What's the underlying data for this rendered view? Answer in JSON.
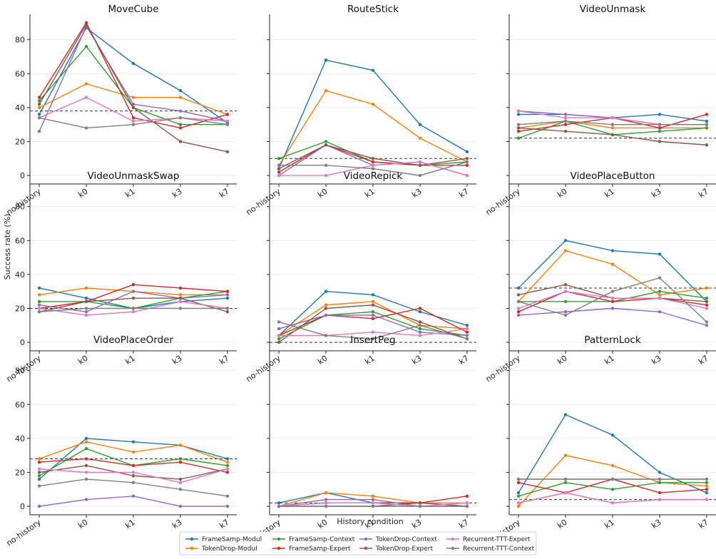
{
  "figure": {
    "ylabel": "Success rate (%)",
    "xlabel": "History condition"
  },
  "colors": {
    "FrameSamp-Modul": "#1f77b4",
    "TokenDrop-Modul": "#ff7f0e",
    "FrameSamp-Context": "#2ca02c",
    "FrameSamp-Expert": "#d62728",
    "TokenDrop-Context": "#9467bd",
    "TokenDrop-Expert": "#8c564b",
    "Recurrent-TTT-Expert": "#e377c2",
    "Recurrent-TTT-Context": "#7f7f7f"
  },
  "legend": {
    "placement": "bottom-center",
    "entries": [
      "FrameSamp-Modul",
      "TokenDrop-Modul",
      "FrameSamp-Context",
      "FrameSamp-Expert",
      "TokenDrop-Context",
      "TokenDrop-Expert",
      "Recurrent-TTT-Expert",
      "Recurrent-TTT-Context"
    ]
  },
  "chart_data": [
    {
      "type": "line",
      "title": "MoveCube",
      "categories": [
        "no-history",
        "k0",
        "k1",
        "k3",
        "k7"
      ],
      "ylim": [
        -5,
        95
      ],
      "yticks": [
        0,
        20,
        40,
        60,
        80
      ],
      "baseline": 38,
      "series": [
        {
          "name": "FrameSamp-Modul",
          "values": [
            36,
            87,
            66,
            50,
            31
          ]
        },
        {
          "name": "TokenDrop-Modul",
          "values": [
            40,
            54,
            46,
            46,
            36
          ]
        },
        {
          "name": "FrameSamp-Context",
          "values": [
            44,
            76,
            40,
            30,
            30
          ]
        },
        {
          "name": "FrameSamp-Expert",
          "values": [
            46,
            90,
            34,
            28,
            36
          ]
        },
        {
          "name": "TokenDrop-Context",
          "values": [
            26,
            88,
            42,
            38,
            32
          ]
        },
        {
          "name": "TokenDrop-Expert",
          "values": [
            42,
            89,
            40,
            20,
            14
          ]
        },
        {
          "name": "Recurrent-TTT-Expert",
          "values": [
            34,
            46,
            32,
            34,
            32
          ]
        },
        {
          "name": "Recurrent-TTT-Context",
          "values": [
            34,
            28,
            30,
            34,
            30
          ]
        }
      ]
    },
    {
      "type": "line",
      "title": "RouteStick",
      "categories": [
        "no-history",
        "k0",
        "k1",
        "k3",
        "k7"
      ],
      "ylim": [
        -5,
        95
      ],
      "yticks": [
        0,
        20,
        40,
        60,
        80
      ],
      "baseline": 10,
      "series": [
        {
          "name": "FrameSamp-Modul",
          "values": [
            4,
            68,
            62,
            30,
            14
          ]
        },
        {
          "name": "TokenDrop-Modul",
          "values": [
            6,
            50,
            42,
            22,
            8
          ]
        },
        {
          "name": "FrameSamp-Context",
          "values": [
            10,
            20,
            8,
            6,
            8
          ]
        },
        {
          "name": "FrameSamp-Expert",
          "values": [
            2,
            18,
            8,
            6,
            6
          ]
        },
        {
          "name": "TokenDrop-Context",
          "values": [
            0,
            18,
            6,
            8,
            0
          ]
        },
        {
          "name": "TokenDrop-Expert",
          "values": [
            4,
            18,
            10,
            6,
            10
          ]
        },
        {
          "name": "Recurrent-TTT-Expert",
          "values": [
            0,
            0,
            6,
            8,
            0
          ]
        },
        {
          "name": "Recurrent-TTT-Context",
          "values": [
            6,
            6,
            4,
            0,
            8
          ]
        }
      ]
    },
    {
      "type": "line",
      "title": "VideoUnmask",
      "categories": [
        "no-history",
        "k0",
        "k1",
        "k3",
        "k7"
      ],
      "ylim": [
        -5,
        95
      ],
      "yticks": [
        0,
        20,
        40,
        60,
        80
      ],
      "baseline": 22,
      "series": [
        {
          "name": "FrameSamp-Modul",
          "values": [
            36,
            36,
            34,
            36,
            32
          ]
        },
        {
          "name": "TokenDrop-Modul",
          "values": [
            28,
            32,
            28,
            28,
            28
          ]
        },
        {
          "name": "FrameSamp-Context",
          "values": [
            22,
            32,
            24,
            26,
            28
          ]
        },
        {
          "name": "FrameSamp-Expert",
          "values": [
            26,
            30,
            34,
            28,
            36
          ]
        },
        {
          "name": "TokenDrop-Context",
          "values": [
            38,
            36,
            34,
            30,
            30
          ]
        },
        {
          "name": "TokenDrop-Expert",
          "values": [
            28,
            26,
            24,
            20,
            18
          ]
        },
        {
          "name": "Recurrent-TTT-Expert",
          "values": [
            38,
            34,
            34,
            30,
            30
          ]
        },
        {
          "name": "Recurrent-TTT-Context",
          "values": [
            30,
            32,
            30,
            30,
            30
          ]
        }
      ]
    },
    {
      "type": "line",
      "title": "VideoUnmaskSwap",
      "categories": [
        "no-history",
        "k0",
        "k1",
        "k3",
        "k7"
      ],
      "ylim": [
        -5,
        95
      ],
      "yticks": [
        0,
        20,
        40,
        60,
        80
      ],
      "baseline": 20,
      "series": [
        {
          "name": "FrameSamp-Modul",
          "values": [
            32,
            26,
            20,
            24,
            26
          ]
        },
        {
          "name": "TokenDrop-Modul",
          "values": [
            28,
            32,
            30,
            28,
            28
          ]
        },
        {
          "name": "FrameSamp-Context",
          "values": [
            24,
            24,
            20,
            26,
            30
          ]
        },
        {
          "name": "FrameSamp-Expert",
          "values": [
            20,
            24,
            34,
            32,
            30
          ]
        },
        {
          "name": "TokenDrop-Context",
          "values": [
            22,
            18,
            30,
            26,
            28
          ]
        },
        {
          "name": "TokenDrop-Expert",
          "values": [
            18,
            24,
            26,
            26,
            18
          ]
        },
        {
          "name": "Recurrent-TTT-Expert",
          "values": [
            20,
            16,
            18,
            24,
            20
          ]
        },
        {
          "name": "Recurrent-TTT-Context",
          "values": [
            18,
            20,
            20,
            20,
            20
          ]
        }
      ]
    },
    {
      "type": "line",
      "title": "VideoRepick",
      "categories": [
        "no-history",
        "k0",
        "k1",
        "k3",
        "k7"
      ],
      "ylim": [
        -5,
        95
      ],
      "yticks": [
        0,
        20,
        40,
        60,
        80
      ],
      "baseline": 0,
      "series": [
        {
          "name": "FrameSamp-Modul",
          "values": [
            4,
            30,
            28,
            18,
            10
          ]
        },
        {
          "name": "TokenDrop-Modul",
          "values": [
            4,
            22,
            24,
            10,
            8
          ]
        },
        {
          "name": "FrameSamp-Context",
          "values": [
            2,
            16,
            18,
            8,
            4
          ]
        },
        {
          "name": "FrameSamp-Expert",
          "values": [
            4,
            16,
            14,
            20,
            6
          ]
        },
        {
          "name": "TokenDrop-Context",
          "values": [
            8,
            16,
            16,
            6,
            4
          ]
        },
        {
          "name": "TokenDrop-Expert",
          "values": [
            0,
            20,
            22,
            12,
            2
          ]
        },
        {
          "name": "Recurrent-TTT-Expert",
          "values": [
            4,
            4,
            6,
            4,
            8
          ]
        },
        {
          "name": "Recurrent-TTT-Context",
          "values": [
            12,
            4,
            2,
            10,
            2
          ]
        }
      ]
    },
    {
      "type": "line",
      "title": "VideoPlaceButton",
      "categories": [
        "no-history",
        "k0",
        "k1",
        "k3",
        "k7"
      ],
      "ylim": [
        -5,
        95
      ],
      "yticks": [
        0,
        20,
        40,
        60,
        80
      ],
      "baseline": 32,
      "series": [
        {
          "name": "FrameSamp-Modul",
          "values": [
            32,
            60,
            54,
            52,
            24
          ]
        },
        {
          "name": "TokenDrop-Modul",
          "values": [
            24,
            54,
            46,
            28,
            32
          ]
        },
        {
          "name": "FrameSamp-Context",
          "values": [
            24,
            24,
            24,
            30,
            26
          ]
        },
        {
          "name": "FrameSamp-Expert",
          "values": [
            18,
            30,
            24,
            26,
            22
          ]
        },
        {
          "name": "TokenDrop-Context",
          "values": [
            16,
            18,
            20,
            18,
            10
          ]
        },
        {
          "name": "TokenDrop-Expert",
          "values": [
            28,
            34,
            26,
            26,
            24
          ]
        },
        {
          "name": "Recurrent-TTT-Expert",
          "values": [
            20,
            30,
            26,
            26,
            20
          ]
        },
        {
          "name": "Recurrent-TTT-Context",
          "values": [
            24,
            16,
            30,
            38,
            12
          ]
        }
      ]
    },
    {
      "type": "line",
      "title": "VideoPlaceOrder",
      "categories": [
        "no-history",
        "k0",
        "k1",
        "k3",
        "k7"
      ],
      "ylim": [
        -5,
        95
      ],
      "yticks": [
        0,
        20,
        40,
        60,
        80
      ],
      "baseline": 28,
      "series": [
        {
          "name": "FrameSamp-Modul",
          "values": [
            16,
            40,
            38,
            36,
            28
          ]
        },
        {
          "name": "TokenDrop-Modul",
          "values": [
            28,
            38,
            32,
            36,
            26
          ]
        },
        {
          "name": "FrameSamp-Context",
          "values": [
            18,
            34,
            24,
            28,
            24
          ]
        },
        {
          "name": "FrameSamp-Expert",
          "values": [
            26,
            28,
            24,
            26,
            20
          ]
        },
        {
          "name": "TokenDrop-Context",
          "values": [
            0,
            4,
            6,
            0,
            0
          ]
        },
        {
          "name": "TokenDrop-Expert",
          "values": [
            20,
            24,
            18,
            16,
            22
          ]
        },
        {
          "name": "Recurrent-TTT-Expert",
          "values": [
            22,
            20,
            20,
            14,
            22
          ]
        },
        {
          "name": "Recurrent-TTT-Context",
          "values": [
            12,
            16,
            14,
            10,
            6
          ]
        }
      ]
    },
    {
      "type": "line",
      "title": "InsertPeg",
      "categories": [
        "no-history",
        "k0",
        "k1",
        "k3",
        "k7"
      ],
      "ylim": [
        -5,
        95
      ],
      "yticks": [
        0,
        20,
        40,
        60,
        80
      ],
      "baseline": 2,
      "series": [
        {
          "name": "FrameSamp-Modul",
          "values": [
            2,
            8,
            2,
            2,
            0
          ]
        },
        {
          "name": "TokenDrop-Modul",
          "values": [
            0,
            8,
            6,
            2,
            2
          ]
        },
        {
          "name": "FrameSamp-Context",
          "values": [
            0,
            0,
            0,
            0,
            0
          ]
        },
        {
          "name": "FrameSamp-Expert",
          "values": [
            0,
            2,
            2,
            2,
            6
          ]
        },
        {
          "name": "TokenDrop-Context",
          "values": [
            0,
            4,
            4,
            0,
            0
          ]
        },
        {
          "name": "TokenDrop-Expert",
          "values": [
            0,
            0,
            0,
            2,
            0
          ]
        },
        {
          "name": "Recurrent-TTT-Expert",
          "values": [
            0,
            2,
            2,
            0,
            2
          ]
        },
        {
          "name": "Recurrent-TTT-Context",
          "values": [
            0,
            0,
            0,
            0,
            0
          ]
        }
      ]
    },
    {
      "type": "line",
      "title": "PatternLock",
      "categories": [
        "no-history",
        "k0",
        "k1",
        "k3",
        "k7"
      ],
      "ylim": [
        -5,
        95
      ],
      "yticks": [
        0,
        20,
        40,
        60,
        80
      ],
      "baseline": 4,
      "series": [
        {
          "name": "FrameSamp-Modul",
          "values": [
            8,
            54,
            42,
            20,
            8
          ]
        },
        {
          "name": "TokenDrop-Modul",
          "values": [
            0,
            30,
            24,
            14,
            12
          ]
        },
        {
          "name": "FrameSamp-Context",
          "values": [
            6,
            14,
            10,
            14,
            14
          ]
        },
        {
          "name": "FrameSamp-Expert",
          "values": [
            14,
            8,
            16,
            8,
            10
          ]
        },
        {
          "name": "TokenDrop-Context",
          "values": [
            2,
            8,
            2,
            4,
            4
          ]
        },
        {
          "name": "TokenDrop-Expert",
          "values": [
            16,
            16,
            16,
            16,
            16
          ]
        },
        {
          "name": "Recurrent-TTT-Expert",
          "values": [
            2,
            8,
            2,
            4,
            4
          ]
        },
        {
          "name": "Recurrent-TTT-Context",
          "values": [
            16,
            16,
            16,
            16,
            16
          ]
        }
      ]
    }
  ]
}
